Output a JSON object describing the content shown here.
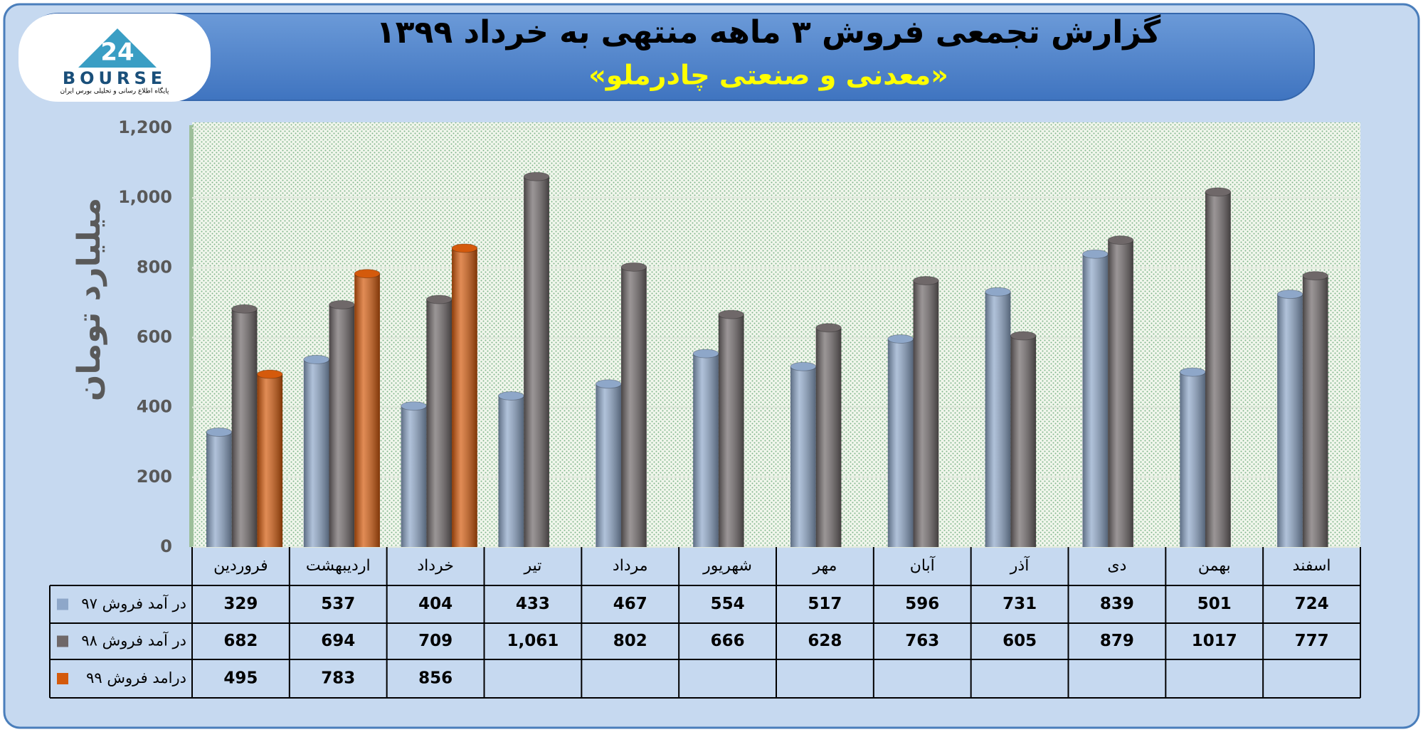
{
  "logo": {
    "number": "24",
    "text": "BOURSE",
    "caption": "پایگاه اطلاع رسانی و تحلیلی بورس ایران"
  },
  "chart_data": {
    "type": "bar",
    "title": "گزارش تجمعی فروش ۳ ماهه منتهی به خرداد ۱۳۹۹",
    "subtitle": "«معدنی و صنعتی چادرملو»",
    "y_label": "میلیارد تومان",
    "categories": [
      "فروردین",
      "اردیبهشت",
      "خرداد",
      "تیر",
      "مرداد",
      "شهریور",
      "مهر",
      "آبان",
      "آذر",
      "دی",
      "بهمن",
      "اسفند"
    ],
    "series": [
      {
        "name": "در آمد فروش ۹۷",
        "color": "#8ea7c9",
        "values": [
          329,
          537,
          404,
          433,
          467,
          554,
          517,
          596,
          731,
          839,
          501,
          724
        ]
      },
      {
        "name": "در آمد فروش ۹۸",
        "color": "#6f6869",
        "values": [
          682,
          694,
          709,
          1061,
          802,
          666,
          628,
          763,
          605,
          879,
          1017,
          777
        ],
        "value_labels": [
          "682",
          "694",
          "709",
          "1,061",
          "802",
          "666",
          "628",
          "763",
          "605",
          "879",
          "1017",
          "777"
        ]
      },
      {
        "name": "درامد فروش ۹۹",
        "color": "#d45a0c",
        "values": [
          495,
          783,
          856,
          null,
          null,
          null,
          null,
          null,
          null,
          null,
          null,
          null
        ]
      }
    ],
    "ylim": [
      0,
      1200
    ],
    "yticks": [
      0,
      200,
      400,
      600,
      800,
      {
        "value": 1000,
        "label": "1,000"
      },
      {
        "value": 1200,
        "label": "1,200"
      }
    ],
    "grid": true
  }
}
